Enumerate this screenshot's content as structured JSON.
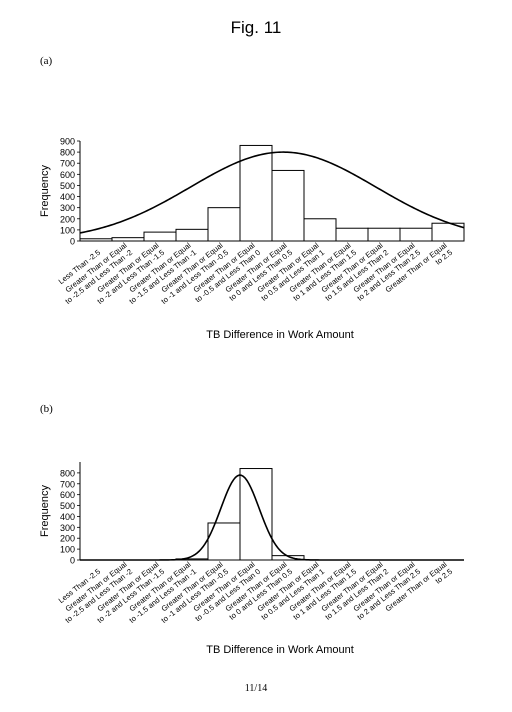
{
  "figure_title": "Fig. 11",
  "page_number": "11/14",
  "colors": {
    "bar_fill": "#ffffff",
    "bar_stroke": "#000000",
    "curve": "#000000"
  },
  "chart_data": [
    {
      "panel_label": "(a)",
      "type": "bar",
      "overlay": "normal-distribution-curve",
      "xlabel": "TB Difference in Work Amount",
      "ylabel": "Frequency",
      "ylim": [
        0,
        900
      ],
      "yticks": [
        0,
        100,
        200,
        300,
        400,
        500,
        600,
        700,
        800,
        900
      ],
      "grid": false,
      "categories": [
        "Less Than -2.5",
        "Greater Than or Equal to -2.5 and Less Than -2",
        "Greater Than or Equal to -2 and Less Than -1.5",
        "Greater Than or Equal to -1.5 and Less Than -1",
        "Greater Than or Equal to -1 and Less Than -0.5",
        "Greater Than or Equal to -0.5 and Less Than 0",
        "Greater Than or Equal to 0 and Less Than 0.5",
        "Greater Than or Equal to 0.5 and Less Than 1",
        "Greater Than or Equal to 1 and Less Than 1.5",
        "Greater Than or Equal to 1.5 and Less Than 2",
        "Greater Than or Equal to 2 and Less Than 2.5",
        "Greater Than or Equal to 2.5"
      ],
      "values": [
        20,
        30,
        80,
        105,
        300,
        860,
        635,
        200,
        115,
        115,
        115,
        160
      ],
      "curve": {
        "peak": 800,
        "peak_position": 6.35,
        "sigma": 2.9
      }
    },
    {
      "panel_label": "(b)",
      "type": "bar",
      "overlay": "normal-distribution-curve",
      "xlabel": "TB Difference in Work Amount",
      "ylabel": "Frequency",
      "ylim": [
        0,
        900
      ],
      "yticks": [
        0,
        100,
        200,
        300,
        400,
        500,
        600,
        700,
        800
      ],
      "grid": false,
      "categories": [
        "Less Than -2.5",
        "Greater Than or Equal to -2.5 and Less Than -2",
        "Greater Than or Equal to -2 and Less Than -1.5",
        "Greater Than or Equal to -1.5 and Less Than -1",
        "Greater Than or Equal to -1 and Less Than -0.5",
        "Greater Than or Equal to -0.5 and Less Than 0",
        "Greater Than or Equal to 0 and Less Than 0.5",
        "Greater Than or Equal to 0.5 and Less Than 1",
        "Greater Than or Equal to 1 and Less Than 1.5",
        "Greater Than or Equal to 1.5 and Less Than 2",
        "Greater Than or Equal to 2 and Less Than 2.5",
        "Greater Than or Equal to 2.5"
      ],
      "values": [
        0,
        0,
        0,
        10,
        340,
        840,
        40,
        0,
        0,
        0,
        0,
        0
      ],
      "curve": {
        "peak": 780,
        "peak_position": 5.0,
        "sigma": 0.6
      }
    }
  ]
}
